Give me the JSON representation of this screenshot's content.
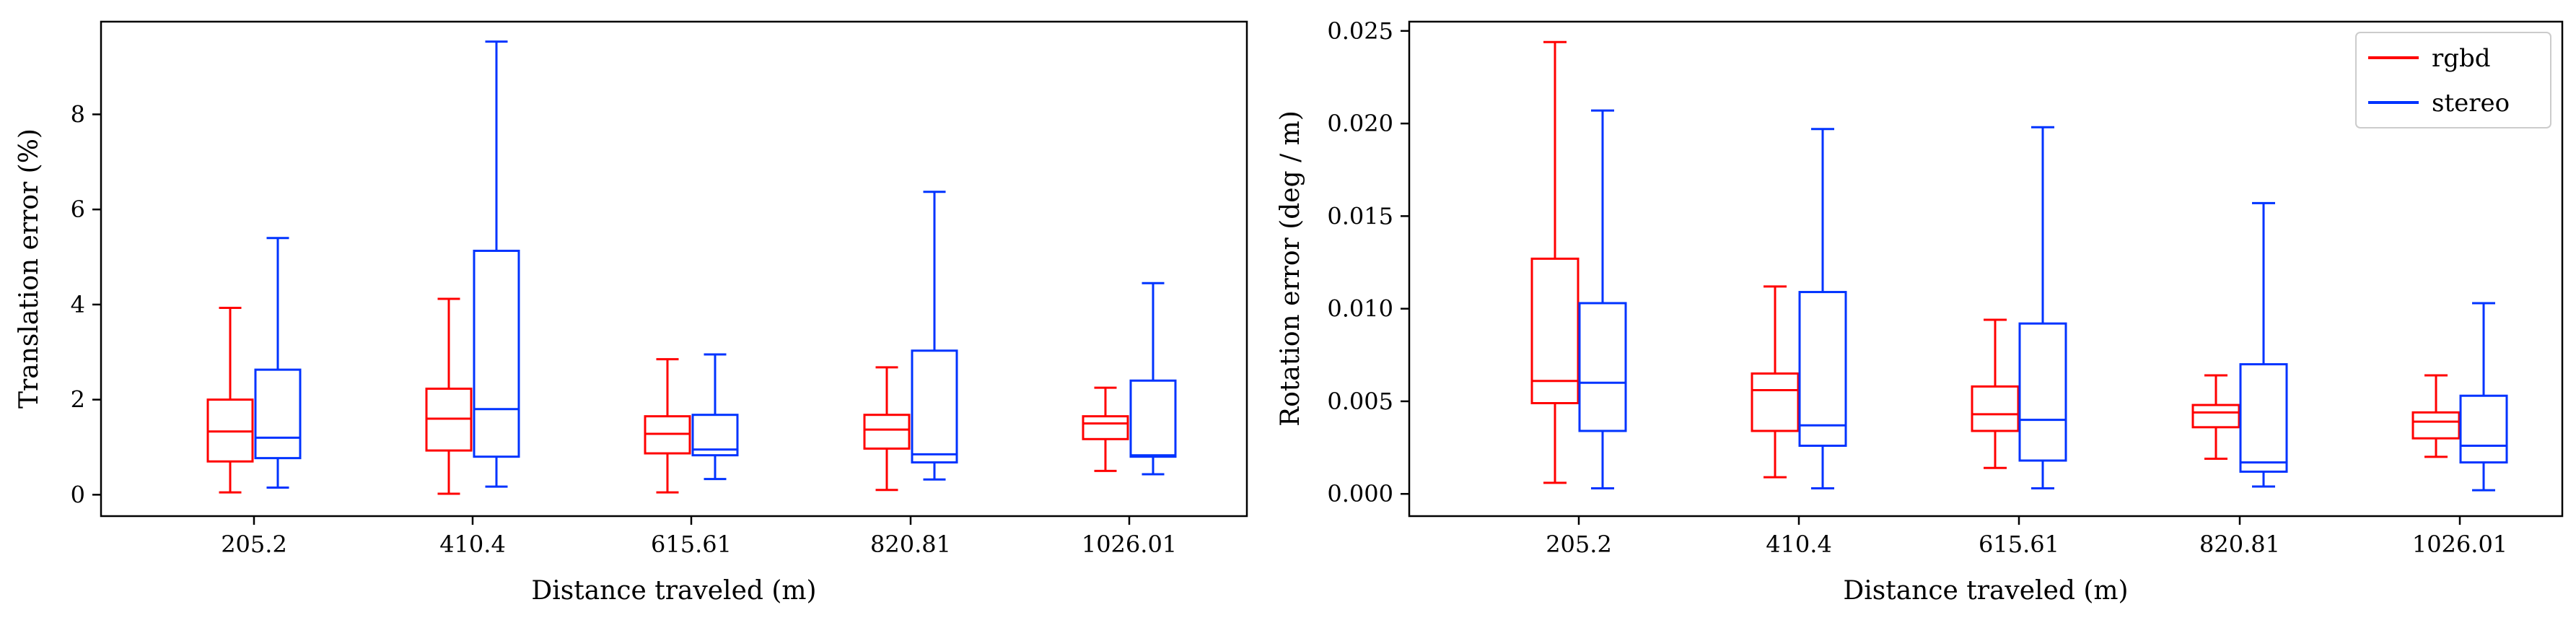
{
  "chart_data": [
    {
      "type": "box",
      "xlabel": "Distance traveled (m)",
      "ylabel": "Translation error (%)",
      "categories": [
        "205.2",
        "410.4",
        "615.61",
        "820.81",
        "1026.01"
      ],
      "ylim": [
        -0.45,
        9.95
      ],
      "yticks": [
        "0",
        "2",
        "4",
        "6",
        "8"
      ],
      "grid": false,
      "series": [
        {
          "name": "rgbd",
          "color": "#ff0000",
          "boxes": [
            {
              "whislo": 0.05,
              "q1": 0.7,
              "med": 1.33,
              "q3": 2.0,
              "whishi": 3.93
            },
            {
              "whislo": 0.02,
              "q1": 0.93,
              "med": 1.6,
              "q3": 2.23,
              "whishi": 4.12
            },
            {
              "whislo": 0.05,
              "q1": 0.87,
              "med": 1.28,
              "q3": 1.65,
              "whishi": 2.85
            },
            {
              "whislo": 0.1,
              "q1": 0.97,
              "med": 1.37,
              "q3": 1.68,
              "whishi": 2.68
            },
            {
              "whislo": 0.5,
              "q1": 1.17,
              "med": 1.5,
              "q3": 1.65,
              "whishi": 2.25
            }
          ]
        },
        {
          "name": "stereo",
          "color": "#0033ff",
          "boxes": [
            {
              "whislo": 0.15,
              "q1": 0.77,
              "med": 1.2,
              "q3": 2.63,
              "whishi": 5.4
            },
            {
              "whislo": 0.17,
              "q1": 0.8,
              "med": 1.8,
              "q3": 5.13,
              "whishi": 9.53
            },
            {
              "whislo": 0.33,
              "q1": 0.83,
              "med": 0.95,
              "q3": 1.68,
              "whishi": 2.95
            },
            {
              "whislo": 0.32,
              "q1": 0.68,
              "med": 0.85,
              "q3": 3.03,
              "whishi": 6.37
            },
            {
              "whislo": 0.43,
              "q1": 0.8,
              "med": 0.83,
              "q3": 2.4,
              "whishi": 4.45
            }
          ]
        }
      ]
    },
    {
      "type": "box",
      "xlabel": "Distance traveled (m)",
      "ylabel": "Rotation error (deg / m)",
      "categories": [
        "205.2",
        "410.4",
        "615.61",
        "820.81",
        "1026.01"
      ],
      "ylim": [
        -0.0012,
        0.0255
      ],
      "yticks": [
        "0.000",
        "0.005",
        "0.010",
        "0.015",
        "0.020",
        "0.025"
      ],
      "grid": false,
      "legend": {
        "position": "top-right",
        "entries": [
          "rgbd",
          "stereo"
        ]
      },
      "series": [
        {
          "name": "rgbd",
          "color": "#ff0000",
          "boxes": [
            {
              "whislo": 0.0006,
              "q1": 0.0049,
              "med": 0.0061,
              "q3": 0.0127,
              "whishi": 0.0244
            },
            {
              "whislo": 0.0009,
              "q1": 0.0034,
              "med": 0.0056,
              "q3": 0.0065,
              "whishi": 0.0112
            },
            {
              "whislo": 0.0014,
              "q1": 0.0034,
              "med": 0.0043,
              "q3": 0.0058,
              "whishi": 0.0094
            },
            {
              "whislo": 0.0019,
              "q1": 0.0036,
              "med": 0.0044,
              "q3": 0.0048,
              "whishi": 0.0064
            },
            {
              "whislo": 0.002,
              "q1": 0.003,
              "med": 0.0039,
              "q3": 0.0044,
              "whishi": 0.0064
            }
          ]
        },
        {
          "name": "stereo",
          "color": "#0033ff",
          "boxes": [
            {
              "whislo": 0.0003,
              "q1": 0.0034,
              "med": 0.006,
              "q3": 0.0103,
              "whishi": 0.0207
            },
            {
              "whislo": 0.0003,
              "q1": 0.0026,
              "med": 0.0037,
              "q3": 0.0109,
              "whishi": 0.0197
            },
            {
              "whislo": 0.0003,
              "q1": 0.0018,
              "med": 0.004,
              "q3": 0.0092,
              "whishi": 0.0198
            },
            {
              "whislo": 0.0004,
              "q1": 0.0012,
              "med": 0.0017,
              "q3": 0.007,
              "whishi": 0.0157
            },
            {
              "whislo": 0.0002,
              "q1": 0.0017,
              "med": 0.0026,
              "q3": 0.0053,
              "whishi": 0.0103
            }
          ]
        }
      ]
    }
  ]
}
